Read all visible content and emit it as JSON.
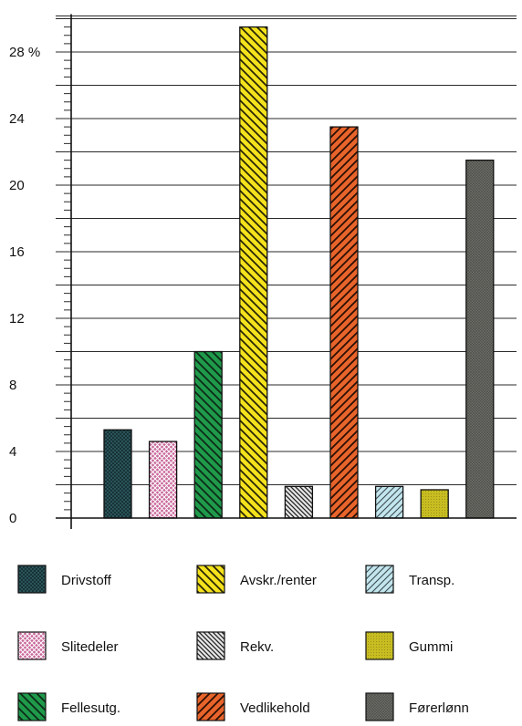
{
  "chart_data": {
    "type": "bar",
    "categories": [
      "Drivstoff",
      "Slitedeler",
      "Fellesutg.",
      "Avskr./renter",
      "Rekv.",
      "Vedlikehold",
      "Transp.",
      "Gummi",
      "Førerlønn"
    ],
    "values": [
      5.3,
      4.6,
      10.0,
      29.5,
      1.9,
      23.5,
      1.9,
      1.7,
      21.5
    ],
    "yticks": [
      {
        "value": 0,
        "label": "0"
      },
      {
        "value": 4,
        "label": "4"
      },
      {
        "value": 8,
        "label": "8"
      },
      {
        "value": 12,
        "label": "12"
      },
      {
        "value": 16,
        "label": "16"
      },
      {
        "value": 20,
        "label": "20"
      },
      {
        "value": 24,
        "label": "24"
      },
      {
        "value": 28,
        "label": "28 %"
      }
    ],
    "ylim": [
      0,
      30
    ],
    "grid": true,
    "legend_position": "bottom",
    "legend_order": [
      [
        "Drivstoff",
        "Avskr./renter",
        "Transp."
      ],
      [
        "Slitedeler",
        "Rekv.",
        "Gummi"
      ],
      [
        "Fellesutg.",
        "Vedlikehold",
        "Førerlønn"
      ]
    ],
    "styles": {
      "Drivstoff": {
        "color": "#2f5d63",
        "pattern": "dense-crosshatch"
      },
      "Slitedeler": {
        "color": "#c9679a",
        "pattern": "crosshatch"
      },
      "Fellesutg.": {
        "color": "#1f9a4a",
        "pattern": "diagonal-back"
      },
      "Avskr./renter": {
        "color": "#f4e21c",
        "pattern": "diagonal-back"
      },
      "Rekv.": {
        "color": "#d9d9d9",
        "pattern": "diagonal-back-dark"
      },
      "Vedlikehold": {
        "color": "#e8642a",
        "pattern": "diagonal-forward"
      },
      "Transp.": {
        "color": "#c3e6ee",
        "pattern": "diagonal-forward-light"
      },
      "Gummi": {
        "color": "#c7bd22",
        "pattern": "dots"
      },
      "Førerlønn": {
        "color": "#6e6e68",
        "pattern": "dense-crosshatch"
      }
    }
  }
}
